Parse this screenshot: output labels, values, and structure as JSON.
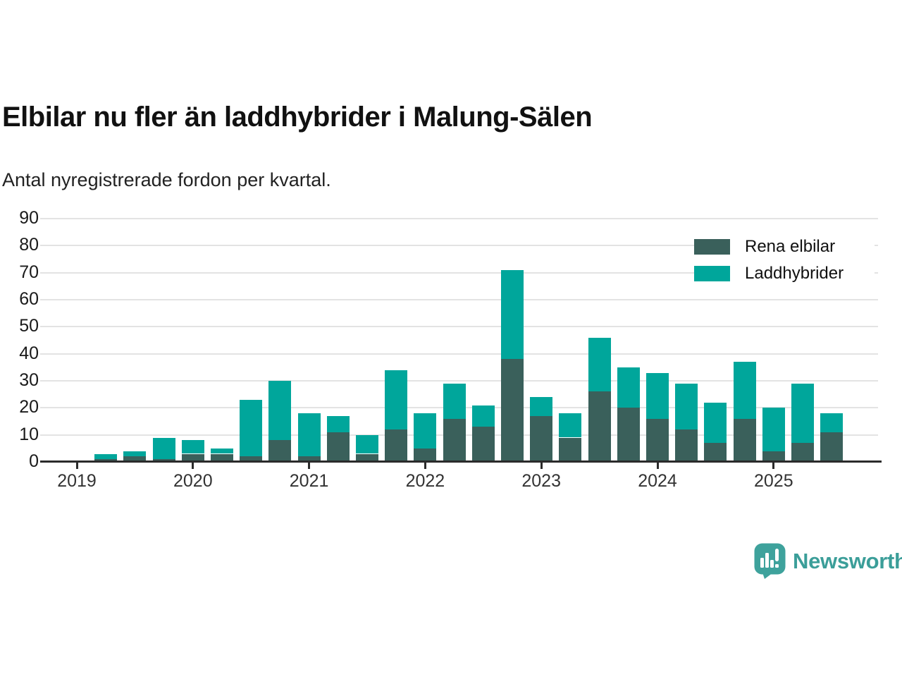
{
  "header": {
    "title": "Elbilar nu fler än laddhybrider i Malung-Sälen",
    "subtitle": "Antal nyregistrerade fordon per kvartal."
  },
  "legend": {
    "items": [
      {
        "label": "Rena elbilar",
        "color": "#3A605B"
      },
      {
        "label": "Laddhybrider",
        "color": "#00A69B"
      }
    ]
  },
  "chart_data": {
    "type": "bar",
    "stacked": true,
    "title": "Elbilar nu fler än laddhybrider i Malung-Sälen",
    "subtitle": "Antal nyregistrerade fordon per kvartal.",
    "categories": [
      "2019 Q2",
      "2019 Q3",
      "2019 Q4",
      "2020 Q1",
      "2020 Q2",
      "2020 Q3",
      "2020 Q4",
      "2021 Q1",
      "2021 Q2",
      "2021 Q3",
      "2021 Q4",
      "2022 Q1",
      "2022 Q2",
      "2022 Q3",
      "2022 Q4",
      "2023 Q1",
      "2023 Q2",
      "2023 Q3",
      "2023 Q4",
      "2024 Q1",
      "2024 Q2",
      "2024 Q3",
      "2024 Q4",
      "2025 Q1",
      "2025 Q2",
      "2025 Q3"
    ],
    "series": [
      {
        "name": "Rena elbilar",
        "color": "#3A605B",
        "values": [
          1,
          2,
          1,
          3,
          3,
          2,
          8,
          2,
          11,
          3,
          12,
          5,
          16,
          13,
          38,
          17,
          9,
          26,
          20,
          16,
          12,
          7,
          16,
          4,
          7,
          11
        ]
      },
      {
        "name": "Laddhybrider",
        "color": "#00A69B",
        "values": [
          2,
          2,
          8,
          5,
          2,
          21,
          22,
          16,
          6,
          7,
          22,
          13,
          13,
          8,
          33,
          7,
          9,
          20,
          15,
          17,
          17,
          15,
          21,
          16,
          22,
          7
        ]
      }
    ],
    "totals": [
      3,
      4,
      9,
      8,
      5,
      23,
      30,
      18,
      17,
      10,
      34,
      18,
      29,
      21,
      71,
      24,
      18,
      46,
      35,
      33,
      29,
      22,
      37,
      20,
      29,
      18
    ],
    "xticks": [
      "2019",
      "2020",
      "2021",
      "2022",
      "2023",
      "2024",
      "2025"
    ],
    "yticks": [
      0,
      10,
      20,
      30,
      40,
      50,
      60,
      70,
      80,
      90
    ],
    "ylim": [
      0,
      90
    ],
    "xlabel": "",
    "ylabel": "",
    "grid": true,
    "legend_position": "top-right"
  },
  "footer": {
    "brand": "Newsworthy",
    "brand_color": "#3B9E99",
    "icon": "newsworthy-speech-bubble-chart-logo"
  }
}
